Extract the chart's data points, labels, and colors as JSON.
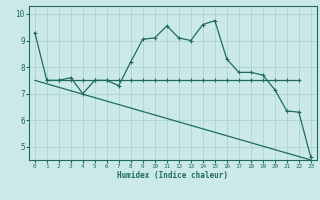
{
  "xlabel": "Humidex (Indice chaleur)",
  "xlim": [
    -0.5,
    23.5
  ],
  "ylim": [
    4.5,
    10.3
  ],
  "yticks": [
    5,
    6,
    7,
    8,
    9,
    10
  ],
  "xticks": [
    0,
    1,
    2,
    3,
    4,
    5,
    6,
    7,
    8,
    9,
    10,
    11,
    12,
    13,
    14,
    15,
    16,
    17,
    18,
    19,
    20,
    21,
    22,
    23
  ],
  "bg_color": "#cce9e9",
  "line_color": "#1e6b5e",
  "grid_color": "#aad4d0",
  "series": [
    {
      "x": [
        0,
        1,
        2,
        3,
        4,
        5,
        6,
        7,
        8,
        9,
        10,
        11,
        12,
        13,
        14,
        15,
        16,
        17,
        18,
        19,
        20,
        21,
        22,
        23
      ],
      "y": [
        9.3,
        7.5,
        7.5,
        7.6,
        7.0,
        7.5,
        7.5,
        7.3,
        8.2,
        9.05,
        9.1,
        9.55,
        9.1,
        9.0,
        9.6,
        9.75,
        8.3,
        7.8,
        7.8,
        7.7,
        7.15,
        6.35,
        6.3,
        4.6
      ]
    },
    {
      "x": [
        1,
        2,
        3,
        4,
        5,
        6,
        7,
        8,
        9,
        10,
        11,
        12,
        13,
        14,
        15,
        16,
        17,
        18,
        19,
        20,
        21,
        22
      ],
      "y": [
        7.5,
        7.5,
        7.5,
        7.5,
        7.5,
        7.5,
        7.5,
        7.5,
        7.5,
        7.5,
        7.5,
        7.5,
        7.5,
        7.5,
        7.5,
        7.5,
        7.5,
        7.5,
        7.5,
        7.5,
        7.5,
        7.5
      ]
    },
    {
      "x": [
        0,
        23
      ],
      "y": [
        7.5,
        4.5
      ]
    }
  ]
}
